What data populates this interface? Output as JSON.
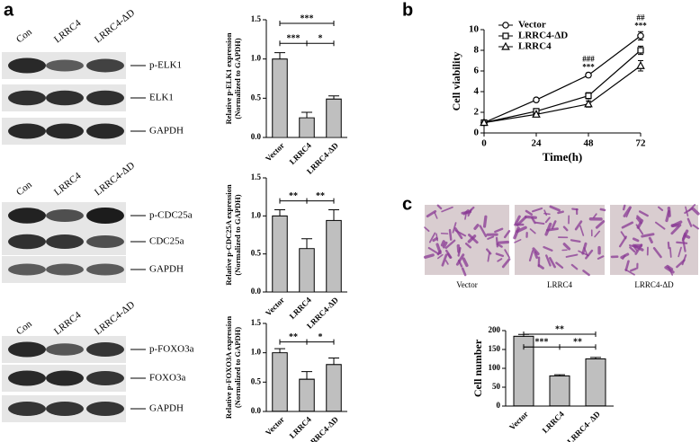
{
  "panel_labels": [
    "a",
    "b",
    "c"
  ],
  "blots": [
    {
      "lanes": [
        "Con",
        "LRRC4",
        "LRRC4-ΔD"
      ],
      "rows": [
        "p-ELK1",
        "ELK1",
        "GAPDH"
      ]
    },
    {
      "lanes": [
        "Con",
        "LRRC4",
        "LRRC4-ΔD"
      ],
      "rows": [
        "p-CDC25a",
        "CDC25a",
        "GAPDH"
      ]
    },
    {
      "lanes": [
        "Con",
        "LRRC4",
        "LRRC4-ΔD"
      ],
      "rows": [
        "p-FOXO3a",
        "FOXO3a",
        "GAPDH"
      ]
    }
  ],
  "micrographs": [
    "Vector",
    "LRRC4",
    "LRRC4-ΔD"
  ],
  "chart_data": [
    {
      "type": "bar",
      "ylabel": [
        "Relative p-ELK1 expression",
        "(Normalized to GAPDH)"
      ],
      "categories": [
        "Vector",
        "LRRC4",
        "LRRC4-ΔD"
      ],
      "values": [
        1.0,
        0.25,
        0.49
      ],
      "errors": [
        0.08,
        0.07,
        0.04
      ],
      "ylim": [
        0,
        1.5
      ],
      "yticks": [
        {
          "value": 0,
          "label": "0.0"
        },
        0.5,
        {
          "value": 1,
          "label": "1.0"
        },
        1.5
      ],
      "brackets": [
        {
          "between": [
            "Vector",
            "LRRC4-ΔD"
          ],
          "label": "***"
        },
        {
          "between": [
            "Vector",
            "LRRC4"
          ],
          "label": "***"
        },
        {
          "between": [
            "LRRC4",
            "LRRC4-ΔD"
          ],
          "label": "*"
        }
      ]
    },
    {
      "type": "bar",
      "ylabel": [
        "Relative p-CDC25A expression",
        "(Normalized to GAPDH)"
      ],
      "categories": [
        "Vector",
        "LRRC4",
        "LRRC4-ΔD"
      ],
      "values": [
        1.0,
        0.57,
        0.94
      ],
      "errors": [
        0.08,
        0.13,
        0.14
      ],
      "ylim": [
        0,
        1.5
      ],
      "yticks": [
        {
          "value": 0,
          "label": "0.0"
        },
        0.5,
        {
          "value": 1,
          "label": "1.0"
        },
        1.5
      ],
      "brackets": [
        {
          "between": [
            "Vector",
            "LRRC4"
          ],
          "label": "**"
        },
        {
          "between": [
            "LRRC4",
            "LRRC4-ΔD"
          ],
          "label": "**"
        }
      ]
    },
    {
      "type": "bar",
      "ylabel": [
        "Relative p-FOXO3A expression",
        "(Normalized to GAPDH)"
      ],
      "categories": [
        "Vector",
        "LRRC4",
        "LRRC4-ΔD"
      ],
      "values": [
        1.0,
        0.55,
        0.8
      ],
      "errors": [
        0.07,
        0.13,
        0.11
      ],
      "ylim": [
        0,
        1.5
      ],
      "yticks": [
        {
          "value": 0,
          "label": "0.0"
        },
        0.5,
        {
          "value": 1,
          "label": "1.0"
        },
        1.5
      ],
      "brackets": [
        {
          "between": [
            "Vector",
            "LRRC4"
          ],
          "label": "**"
        },
        {
          "between": [
            "LRRC4",
            "LRRC4-ΔD"
          ],
          "label": "*"
        }
      ]
    },
    {
      "type": "line",
      "xlabel": "Time(h)",
      "ylabel": [
        "Cell viability"
      ],
      "x": [
        0,
        24,
        48,
        72
      ],
      "xlim": [
        0,
        72
      ],
      "xticks": [
        0,
        24,
        48,
        72
      ],
      "ylim": [
        0,
        10
      ],
      "yticks": [
        0,
        2,
        4,
        6,
        8,
        10
      ],
      "series": [
        {
          "name": "Vector",
          "color": "#000000",
          "marker": "circle",
          "values": [
            1.0,
            3.2,
            5.6,
            9.4
          ],
          "errors": [
            0.05,
            0.1,
            0.2,
            0.4
          ]
        },
        {
          "name": "LRRC4-ΔD",
          "color": "#000000",
          "marker": "square",
          "values": [
            1.0,
            2.1,
            3.6,
            8.0
          ],
          "errors": [
            0.05,
            0.1,
            0.3,
            0.4
          ]
        },
        {
          "name": "LRRC4",
          "color": "#000000",
          "marker": "triangle",
          "values": [
            1.0,
            1.8,
            2.8,
            6.5
          ],
          "errors": [
            0.05,
            0.1,
            0.3,
            0.5
          ]
        }
      ],
      "annotations": [
        {
          "x": 48,
          "labels": [
            "###",
            "***"
          ]
        },
        {
          "x": 72,
          "labels": [
            "##",
            "***"
          ]
        }
      ]
    },
    {
      "type": "bar",
      "ylabel": [
        "Cell number"
      ],
      "categories": [
        "Vector",
        "LRRC4",
        "LRRC4- ΔD"
      ],
      "values": [
        185,
        80,
        125
      ],
      "errors": [
        5,
        3,
        4
      ],
      "ylim": [
        0,
        200
      ],
      "yticks": [
        0,
        50,
        100,
        150,
        200
      ],
      "brackets": [
        {
          "between": [
            "Vector",
            "LRRC4- ΔD"
          ],
          "label": "**"
        },
        {
          "between": [
            "Vector",
            "LRRC4"
          ],
          "label": "***"
        },
        {
          "between": [
            "LRRC4",
            "LRRC4- ΔD"
          ],
          "label": "**"
        }
      ]
    }
  ]
}
